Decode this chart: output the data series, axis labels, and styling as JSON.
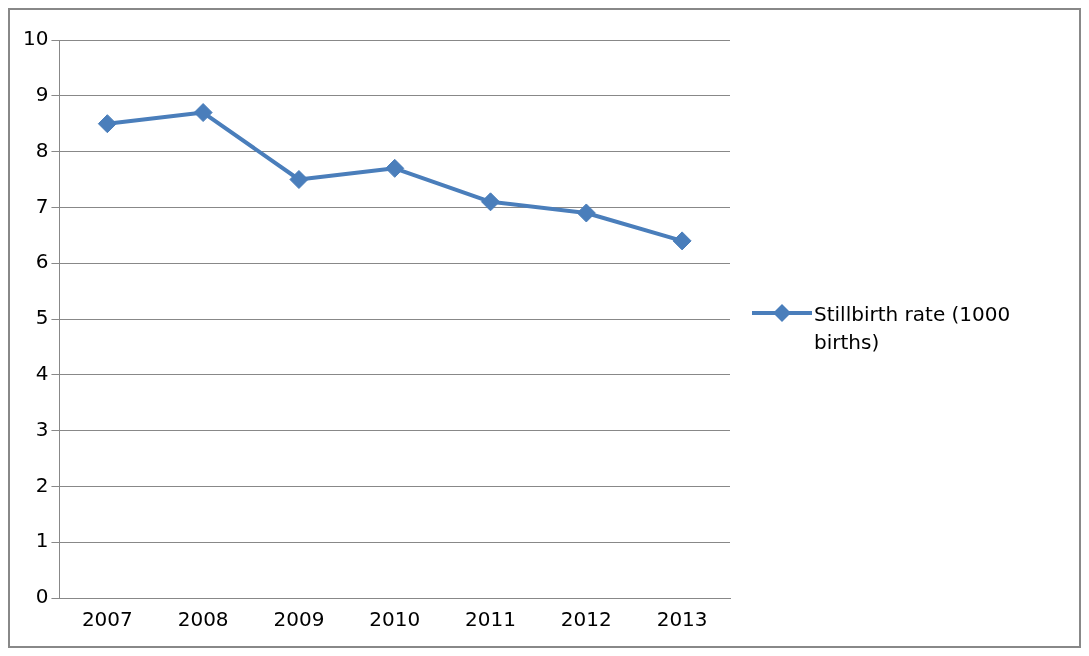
{
  "chart_data": {
    "type": "line",
    "categories": [
      "2007",
      "2008",
      "2009",
      "2010",
      "2011",
      "2012",
      "2013"
    ],
    "series": [
      {
        "name": "Stillbirth rate (1000 births)",
        "color": "#4a7ebb",
        "values": [
          8.5,
          8.7,
          7.5,
          7.7,
          7.1,
          6.9,
          6.4
        ]
      }
    ],
    "ylim": [
      0,
      10
    ],
    "yticks": [
      0,
      1,
      2,
      3,
      4,
      5,
      6,
      7,
      8,
      9,
      10
    ],
    "grid": "y",
    "legend": "right",
    "marker": "diamond",
    "line_style": "solid"
  }
}
